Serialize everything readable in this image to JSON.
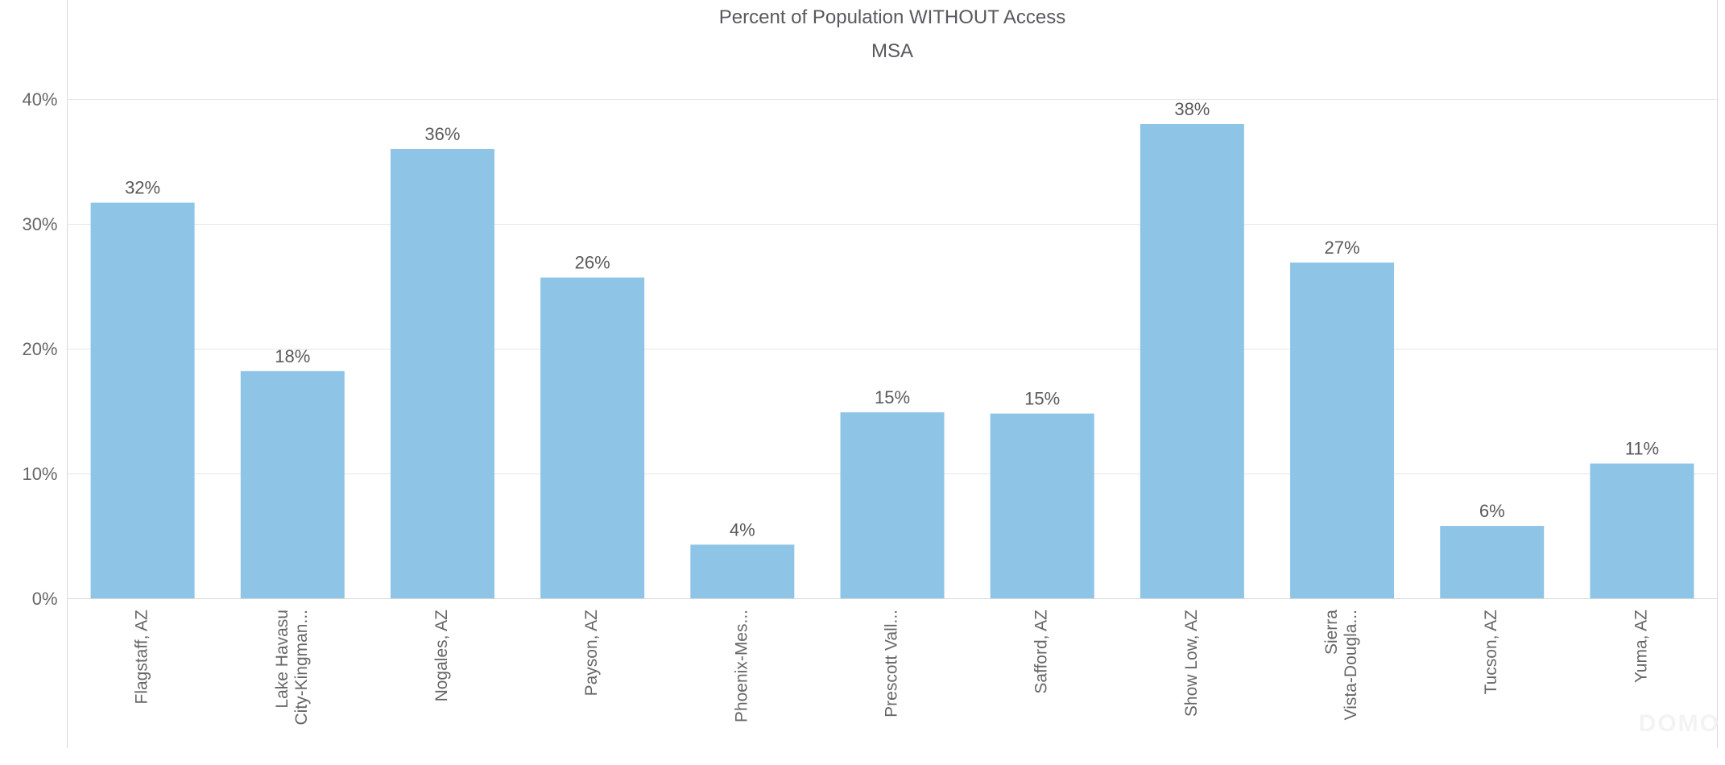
{
  "page": {
    "background": "#ffffff"
  },
  "chart": {
    "title": "Percent of Population WITHOUT Access",
    "subtitle": "MSA",
    "watermark": "DOMO"
  },
  "chart_data": {
    "type": "bar",
    "title": "Percent of Population WITHOUT Access",
    "subtitle": "MSA",
    "xlabel": "MSA",
    "ylabel": "",
    "categories": [
      "Flagstaff, AZ",
      "Lake Havasu\nCity-Kingman...",
      "Nogales, AZ",
      "Payson, AZ",
      "Phoenix-Mes...",
      "Prescott Vall...",
      "Safford, AZ",
      "Show Low, AZ",
      "Sierra\nVista-Dougla...",
      "Tucson, AZ",
      "Yuma, AZ"
    ],
    "category_lines": [
      [
        "Flagstaff, AZ"
      ],
      [
        "Lake Havasu",
        "City-Kingman..."
      ],
      [
        "Nogales, AZ"
      ],
      [
        "Payson, AZ"
      ],
      [
        "Phoenix-Mes..."
      ],
      [
        "Prescott Vall..."
      ],
      [
        "Safford, AZ"
      ],
      [
        "Show Low, AZ"
      ],
      [
        "Sierra",
        "Vista-Dougla..."
      ],
      [
        "Tucson, AZ"
      ],
      [
        "Yuma, AZ"
      ]
    ],
    "values": [
      31.7,
      18.2,
      36.0,
      25.7,
      4.3,
      14.9,
      14.8,
      38.0,
      26.9,
      5.8,
      10.8
    ],
    "data_labels": [
      "32%",
      "18%",
      "36%",
      "26%",
      "4%",
      "15%",
      "15%",
      "38%",
      "27%",
      "6%",
      "11%"
    ],
    "y_ticks": [
      "40%",
      "30%",
      "20%",
      "10%",
      "0%"
    ],
    "y_tick_values": [
      40,
      30,
      20,
      10,
      0
    ],
    "ylim": [
      0,
      47.9
    ],
    "grid": true,
    "legend": "none",
    "bar_color": "#8ec4e6",
    "gridline_color": "#e6e6e6",
    "axis_line_color": "#d9d9d9",
    "tick_label_color": "#666666",
    "data_label_color": "#5a5a5a"
  }
}
